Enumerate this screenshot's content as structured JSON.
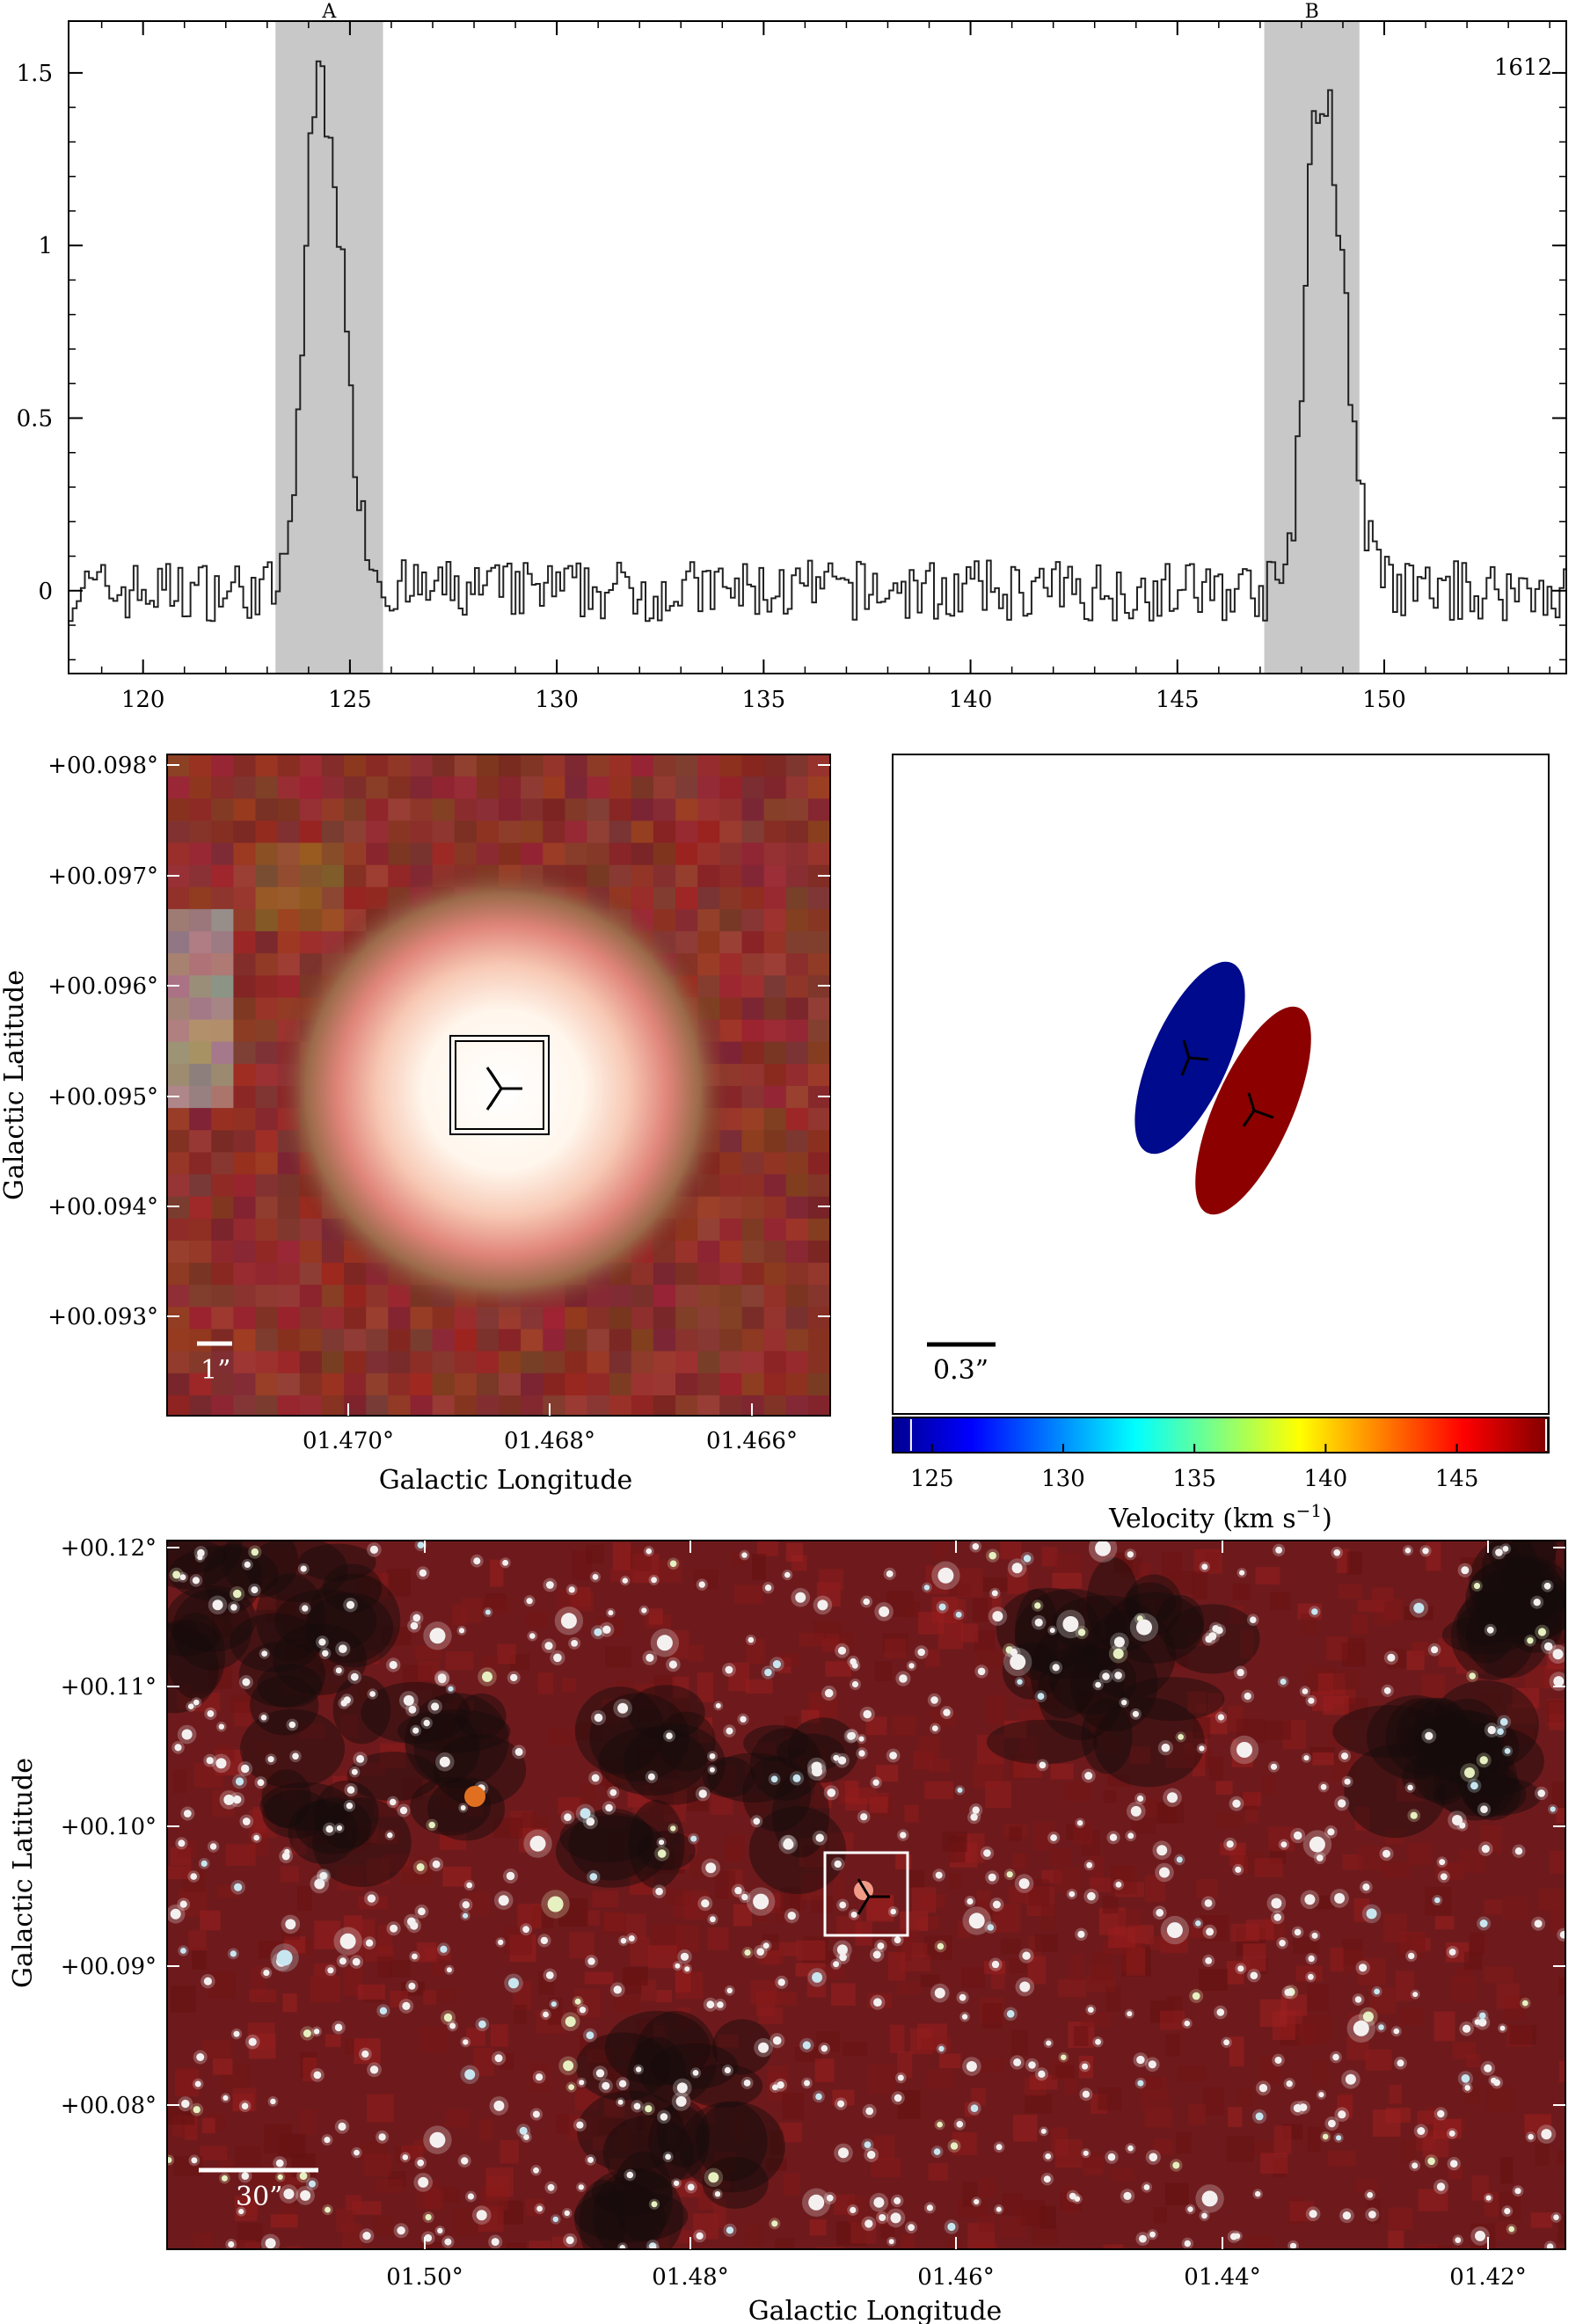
{
  "chart_data": [
    {
      "type": "line",
      "style": "step",
      "title": "",
      "xlabel": "",
      "ylabel": "",
      "xlim": [
        118.2,
        154.4
      ],
      "ylim": [
        -0.24,
        1.65
      ],
      "x_ticks": [
        "120",
        "125",
        "130",
        "135",
        "140",
        "145",
        "150"
      ],
      "y_ticks": [
        "0",
        "0.5",
        "1",
        "1.5"
      ],
      "annotation": "1612",
      "shaded_regions": [
        {
          "label": "A",
          "x": [
            123.2,
            125.8
          ]
        },
        {
          "label": "B",
          "x": [
            147.1,
            149.4
          ]
        }
      ],
      "series": [
        {
          "peaks": [
            {
              "center": 124.2,
              "amplitude": 1.55
            },
            {
              "center": 148.4,
              "amplitude": 1.53
            }
          ],
          "baseline_noise": 0.08
        }
      ]
    },
    {
      "type": "heatmap",
      "description_panel": "three-color infrared cutout",
      "xlabel": "Galactic Longitude",
      "ylabel": "Galactic Latitude",
      "x_ticks": [
        "01.470°",
        "01.468°",
        "01.466°"
      ],
      "y_ticks": [
        "+00.098°",
        "+00.097°",
        "+00.096°",
        "+00.095°",
        "+00.094°",
        "+00.093°"
      ],
      "scale_bar": "1”"
    },
    {
      "type": "scatter",
      "xlabel": "",
      "ylabel": "",
      "scale_bar": "0.3”",
      "colorbar_label": "Velocity (km s",
      "colorbar_label_sup": "−1",
      "colorbar_label_end": ")",
      "colorbar_ticks": [
        "125",
        "130",
        "135",
        "140",
        "145"
      ],
      "colorbar_range": [
        123.5,
        148.5
      ],
      "points": [
        {
          "velocity": 124.2,
          "color": "#000a8c"
        },
        {
          "velocity": 148.4,
          "color": "#8c0000"
        }
      ]
    },
    {
      "type": "heatmap",
      "description_panel": "wide-field three-color infrared image",
      "xlabel": "Galactic Longitude",
      "ylabel": "Galactic Latitude",
      "x_ticks": [
        "01.50°",
        "01.48°",
        "01.46°",
        "01.44°",
        "01.42°"
      ],
      "y_ticks": [
        "+00.12°",
        "+00.11°",
        "+00.10°",
        "+00.09°",
        "+00.08°"
      ],
      "scale_bar": "30”"
    }
  ]
}
